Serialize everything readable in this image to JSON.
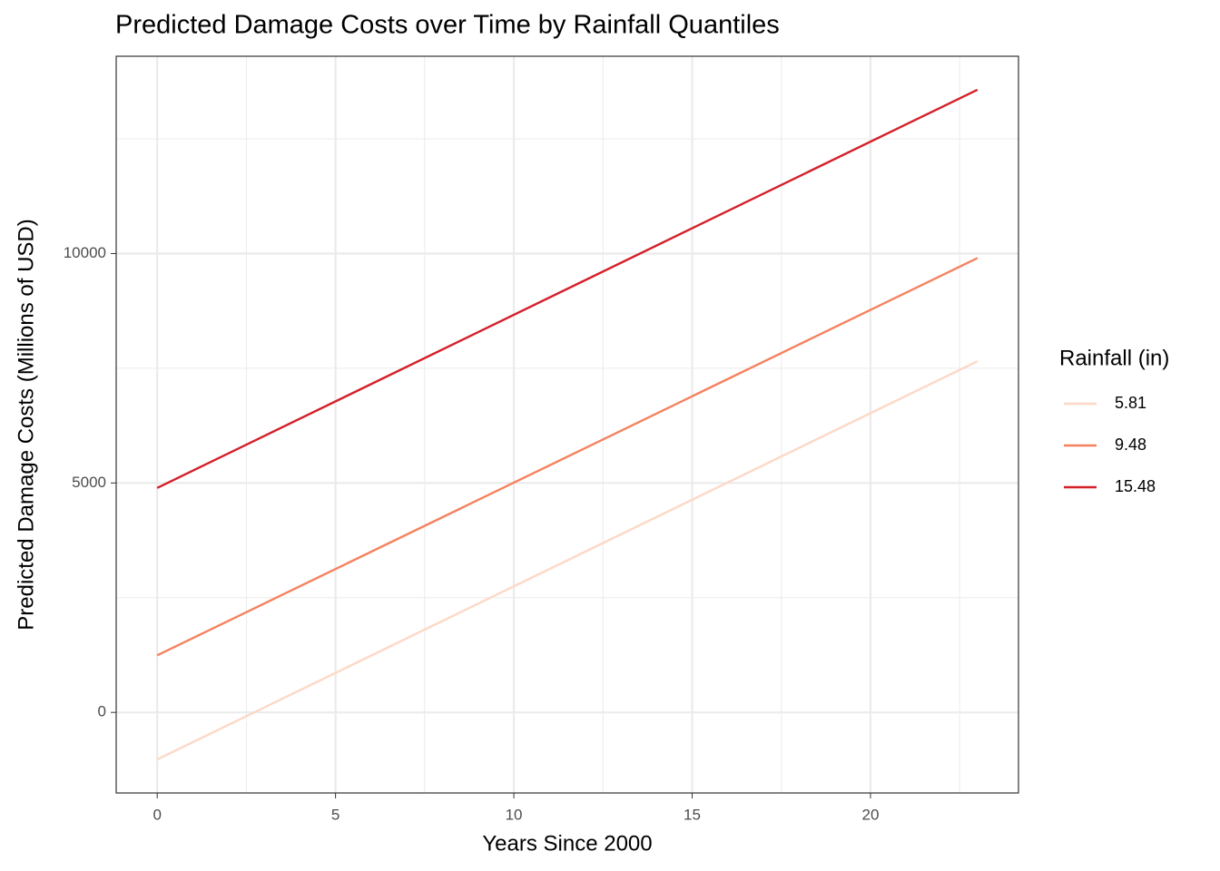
{
  "chart_data": {
    "type": "line",
    "title": "Predicted Damage Costs over Time by Rainfall Quantiles",
    "x_label": "Years Since 2000",
    "y_label": "Predicted Damage Costs (Millions of USD)",
    "legend_title": "Rainfall (in)",
    "legend_position": "right",
    "grid": true,
    "x": [
      0,
      23
    ],
    "series": [
      {
        "name": "5.81",
        "color": "#fdd8c7",
        "values": [
          -1026,
          7653
        ]
      },
      {
        "name": "9.48",
        "color": "#f5825f",
        "values": [
          1243,
          9901
        ]
      },
      {
        "name": "15.48",
        "color": "#d4202a",
        "values": [
          4892,
          13570
        ]
      }
    ],
    "xlim": [
      -1.15,
      24.15
    ],
    "xticks": [
      0,
      5,
      10,
      15,
      20
    ],
    "x_minor_grid": [
      2.5,
      7.5,
      12.5,
      17.5,
      22.5
    ],
    "ylim": [
      -1756,
      14300
    ],
    "yticks": [
      0,
      5000,
      10000
    ],
    "y_minor_grid": [
      2500,
      7500,
      12500
    ]
  }
}
